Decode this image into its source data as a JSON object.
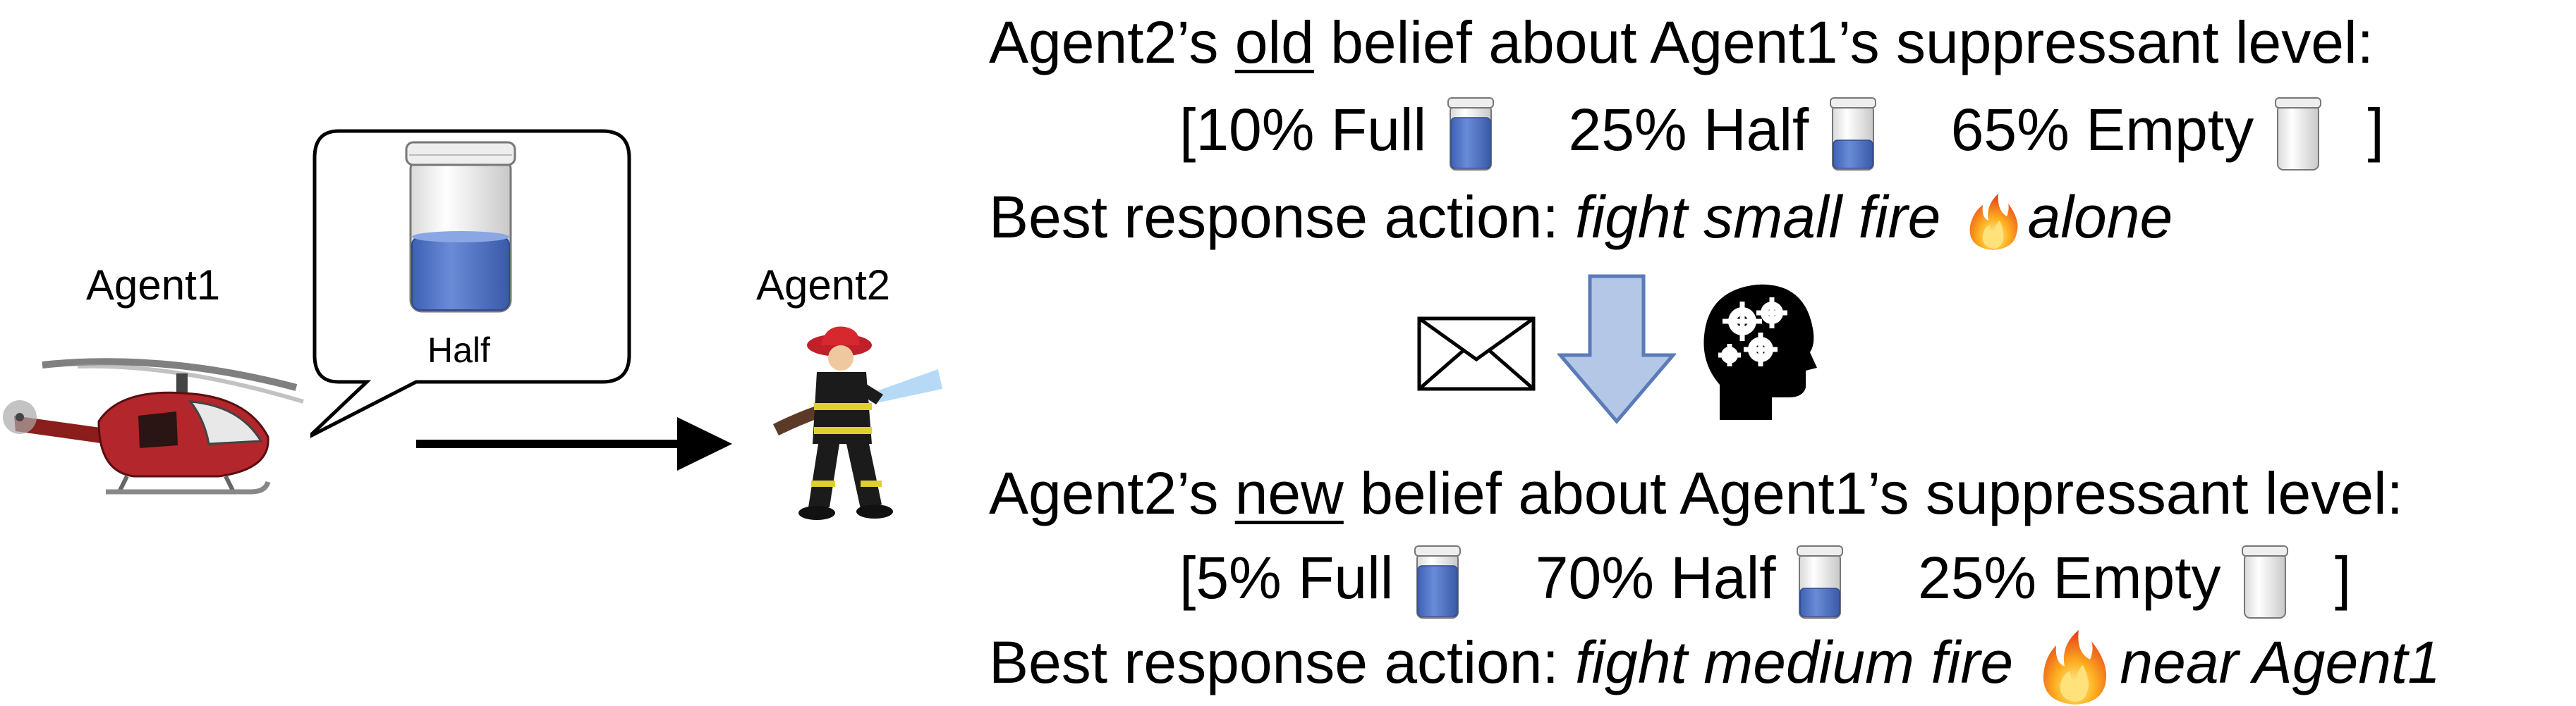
{
  "left": {
    "agent1_label": "Agent1",
    "agent2_label": "Agent2",
    "bubble_label": "Half"
  },
  "old": {
    "belief_prefix": "Agent2’s ",
    "belief_emph": "old",
    "belief_suffix": " belief about Agent1’s suppressant level:",
    "open_bracket": "[",
    "full": "10% Full",
    "half": "25% Half",
    "empty": "65% Empty",
    "close_bracket": "]",
    "action_prefix": "Best response action: ",
    "action_italic_1": "fight small fire",
    "action_italic_2": "alone"
  },
  "new": {
    "belief_prefix": "Agent2’s ",
    "belief_emph": "new",
    "belief_suffix": " belief about Agent1’s suppressant level:",
    "open_bracket": "[",
    "full": "5% Full",
    "half": "70% Half",
    "empty": "25% Empty",
    "close_bracket": "]",
    "action_prefix": "Best response action: ",
    "action_italic_1": "fight medium fire",
    "action_italic_2": "near Agent1"
  },
  "colors": {
    "water": "#4a6fc2",
    "arrow_fill": "#b4c7e7",
    "arrow_stroke": "#5a7ab8"
  },
  "icons": [
    "envelope-icon",
    "down-arrow-icon",
    "thinking-head-gears-icon",
    "helicopter-icon",
    "firefighter-icon",
    "fire-icon",
    "jar-icon"
  ]
}
